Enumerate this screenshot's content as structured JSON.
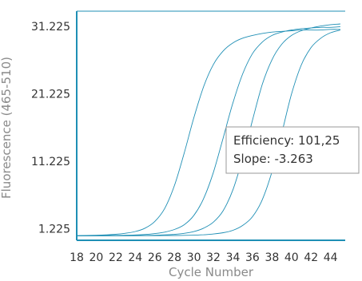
{
  "chart_data": {
    "type": "line",
    "xlabel": "Cycle Number",
    "ylabel": "Fluorescence (465-510)",
    "xlim": [
      18,
      45.5
    ],
    "ylim": [
      -0.5,
      33.5
    ],
    "x_ticks": [
      18,
      20,
      22,
      24,
      26,
      28,
      30,
      32,
      34,
      36,
      38,
      40,
      42,
      44
    ],
    "y_ticks": [
      1.225,
      11.225,
      21.225,
      31.225
    ],
    "y_tick_labels": [
      "1.225",
      "11.225",
      "21.225",
      "31.225"
    ],
    "grid": false,
    "x": [
      18,
      19,
      20,
      21,
      22,
      23,
      24,
      25,
      26,
      27,
      28,
      29,
      30,
      31,
      32,
      33,
      34,
      35,
      36,
      37,
      38,
      39,
      40,
      41,
      42,
      43,
      44,
      45
    ],
    "series": [
      {
        "values": [
          0.18,
          0.21,
          0.25,
          0.31,
          0.39,
          0.54,
          0.8,
          1.3,
          2.3,
          4.2,
          7.6,
          12.4,
          17.7,
          22.3,
          25.6,
          27.6,
          28.8,
          29.5,
          29.9,
          30.2,
          30.4,
          30.5,
          30.6,
          30.7,
          30.7,
          30.7,
          30.8,
          30.8
        ]
      },
      {
        "values": [
          0.18,
          0.18,
          0.19,
          0.2,
          0.22,
          0.25,
          0.29,
          0.36,
          0.49,
          0.71,
          1.1,
          1.8,
          3.2,
          5.7,
          9.6,
          14.7,
          19.9,
          24.2,
          27.2,
          28.9,
          29.9,
          30.4,
          30.7,
          30.9,
          31.0,
          31.1,
          31.1,
          31.2
        ]
      },
      {
        "values": [
          0.18,
          0.18,
          0.18,
          0.18,
          0.19,
          0.19,
          0.2,
          0.22,
          0.25,
          0.3,
          0.38,
          0.53,
          0.79,
          1.3,
          2.2,
          3.9,
          7.0,
          11.7,
          17.3,
          22.6,
          26.3,
          28.6,
          29.9,
          30.6,
          31.0,
          31.3,
          31.5,
          31.6
        ]
      },
      {
        "values": [
          0.18,
          0.18,
          0.18,
          0.18,
          0.18,
          0.18,
          0.18,
          0.19,
          0.19,
          0.2,
          0.21,
          0.23,
          0.26,
          0.32,
          0.43,
          0.62,
          0.98,
          1.7,
          3.0,
          5.5,
          9.7,
          15.4,
          21.2,
          25.5,
          28.1,
          29.5,
          30.3,
          30.7
        ]
      }
    ],
    "annotation": {
      "line1": "Efficiency: 101,25",
      "line2": "Slope: -3.263"
    }
  },
  "style": {
    "curve_color": "#1f8fb5",
    "axis_color": "#1f8fb5",
    "label_color": "#8a8a8a"
  }
}
